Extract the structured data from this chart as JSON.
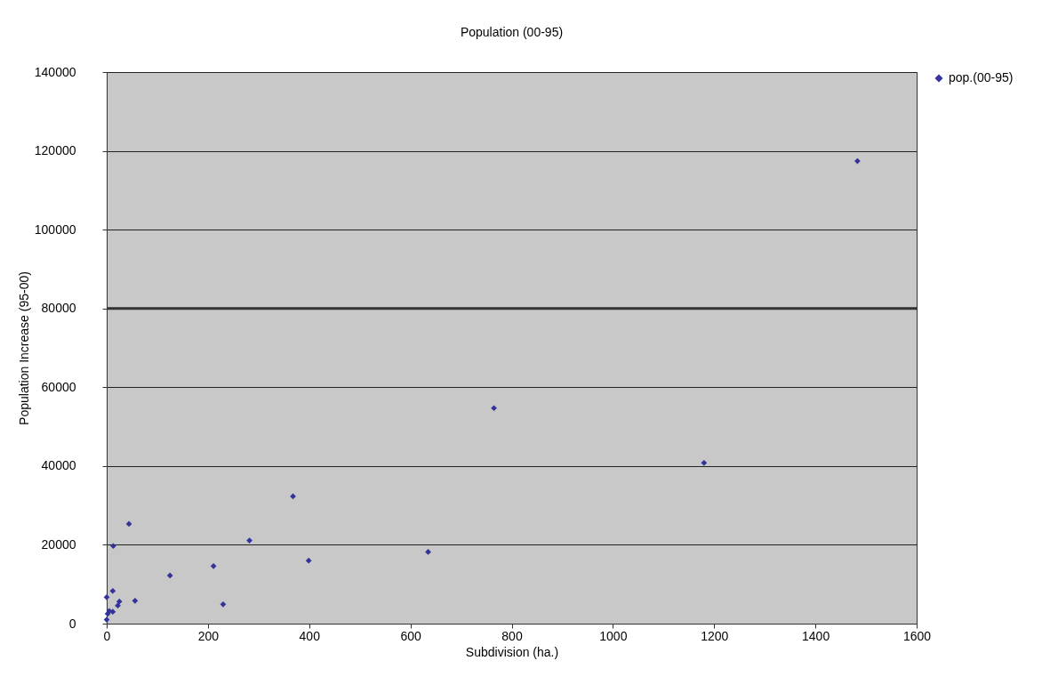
{
  "chart_data": {
    "type": "scatter",
    "title": "Population (00-95)",
    "xlabel": "Subdivision (ha.)",
    "ylabel": "Population Increase (95-00)",
    "x": [
      1483,
      765,
      1180,
      368,
      44,
      282,
      13,
      635,
      399,
      211,
      125,
      12,
      230,
      56,
      25,
      22,
      0,
      5,
      12,
      0,
      2
    ],
    "series": [
      {
        "name": "pop.(00-95)",
        "color": "#333399",
        "values": [
          117400,
          54700,
          40800,
          32300,
          25300,
          21100,
          19700,
          18200,
          16000,
          14600,
          12200,
          8300,
          4900,
          5800,
          5600,
          4600,
          6700,
          3200,
          3000,
          1000,
          2500
        ]
      }
    ],
    "xlim": [
      0,
      1600
    ],
    "xticks": [
      0,
      200,
      400,
      600,
      800,
      1000,
      1200,
      1400,
      1600
    ],
    "ylim": [
      0,
      140000
    ],
    "yticks": [
      0,
      20000,
      40000,
      60000,
      80000,
      100000,
      120000,
      140000
    ],
    "ref_lines": [
      {
        "axis": "y",
        "value": 80000,
        "color": "#333333"
      }
    ],
    "grid": "y",
    "legend": "right",
    "marker": "diamond"
  }
}
